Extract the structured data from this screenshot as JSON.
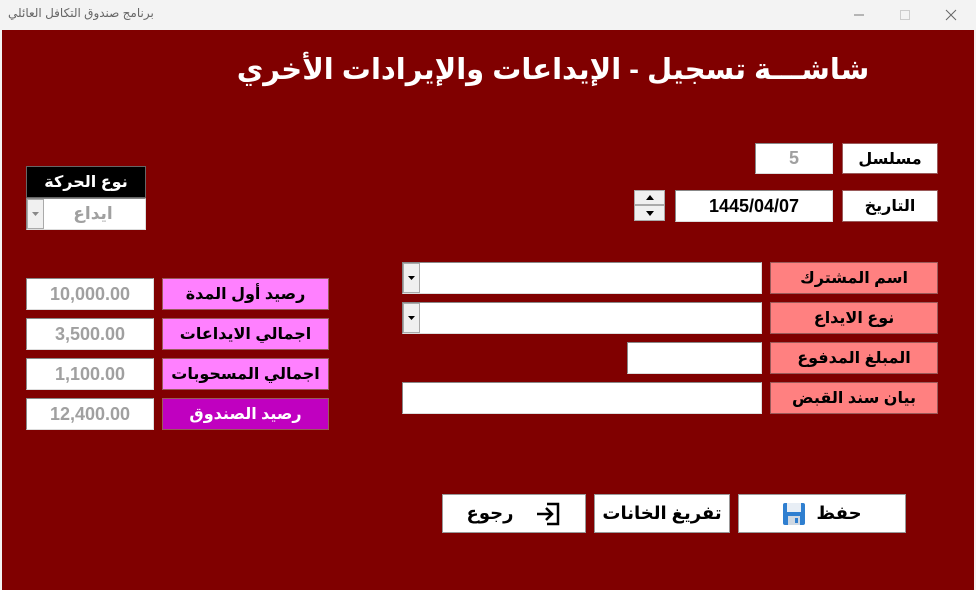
{
  "window": {
    "title": "برنامج صندوق التكافل العائلي",
    "minimize_icon": "minimize-icon",
    "maximize_icon": "maximize-icon",
    "close_icon": "close-icon"
  },
  "form": {
    "title": "شاشـــة تسجيل - الإيداعات والإيرادات الأخري"
  },
  "serial": {
    "label": "مسلسل",
    "value": "5"
  },
  "date": {
    "label": "التاريخ",
    "value": "1445/04/07"
  },
  "movement_type": {
    "label": "نوع الحركة",
    "value": "ايداع"
  },
  "summary": [
    {
      "label": "رصيد أول المدة",
      "value": "10,000.00"
    },
    {
      "label": "اجمالي الايداعات",
      "value": "3,500.00"
    },
    {
      "label": "اجمالي المسحوبات",
      "value": "1,100.00"
    },
    {
      "label": "رصيد الصندوق",
      "value": "12,400.00"
    }
  ],
  "fields": {
    "subscriber_name": {
      "label": "اسم المشترك",
      "value": ""
    },
    "deposit_type": {
      "label": "نوع الايداع",
      "value": ""
    },
    "amount_paid": {
      "label": "المبلغ المدفوع",
      "value": ""
    },
    "receipt_note": {
      "label": "بيان سند القبض",
      "value": ""
    }
  },
  "buttons": {
    "save": "حفظ",
    "clear": "تفريغ الخانات",
    "back": "رجوع"
  },
  "colors": {
    "background": "#800000",
    "field_label": "#ff8080",
    "summary_label": "#ff80ff",
    "balance_label": "#c000c0"
  }
}
